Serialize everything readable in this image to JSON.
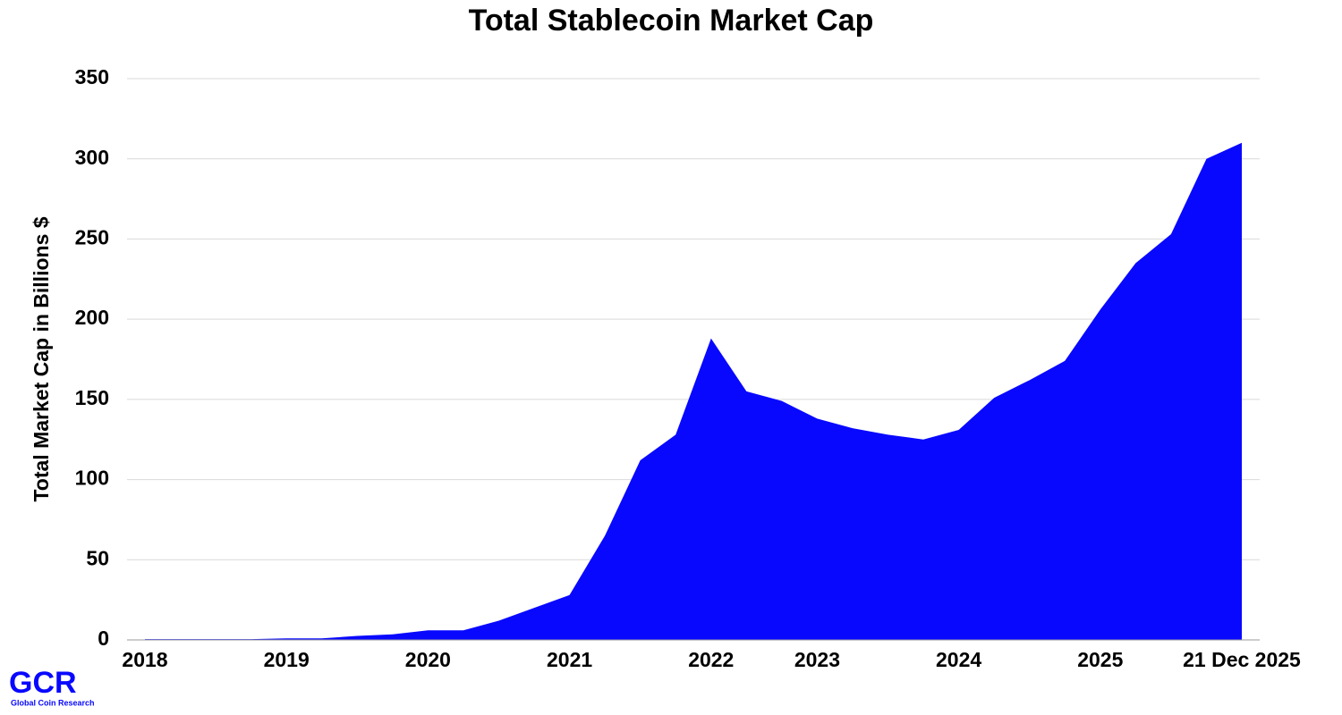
{
  "chart_data": {
    "type": "area",
    "title": "Total Stablecoin Market Cap",
    "y_label": "Total Market Cap in Billions $",
    "categories": [
      "2018",
      null,
      null,
      null,
      "2019",
      null,
      null,
      null,
      "2020",
      null,
      null,
      null,
      "2021",
      null,
      null,
      null,
      "2022",
      null,
      null,
      "2023",
      null,
      null,
      null,
      "2024",
      null,
      null,
      null,
      "2025",
      null,
      null,
      null,
      "21 Dec 2025"
    ],
    "values": [
      0.5,
      0.5,
      0.5,
      0.5,
      1,
      1,
      2.5,
      3.5,
      6,
      6,
      12,
      20,
      28,
      65,
      112,
      128,
      188,
      155,
      149,
      138,
      132,
      128,
      125,
      131,
      151,
      162,
      174,
      206,
      235,
      253,
      300,
      310
    ],
    "color": "#0808ff",
    "ylim": [
      0,
      350
    ],
    "yticks": [
      0,
      50,
      100,
      150,
      200,
      250,
      300,
      350
    ],
    "grid": true
  },
  "logo": {
    "text": "GCR",
    "subtitle": "Global Coin Research"
  }
}
